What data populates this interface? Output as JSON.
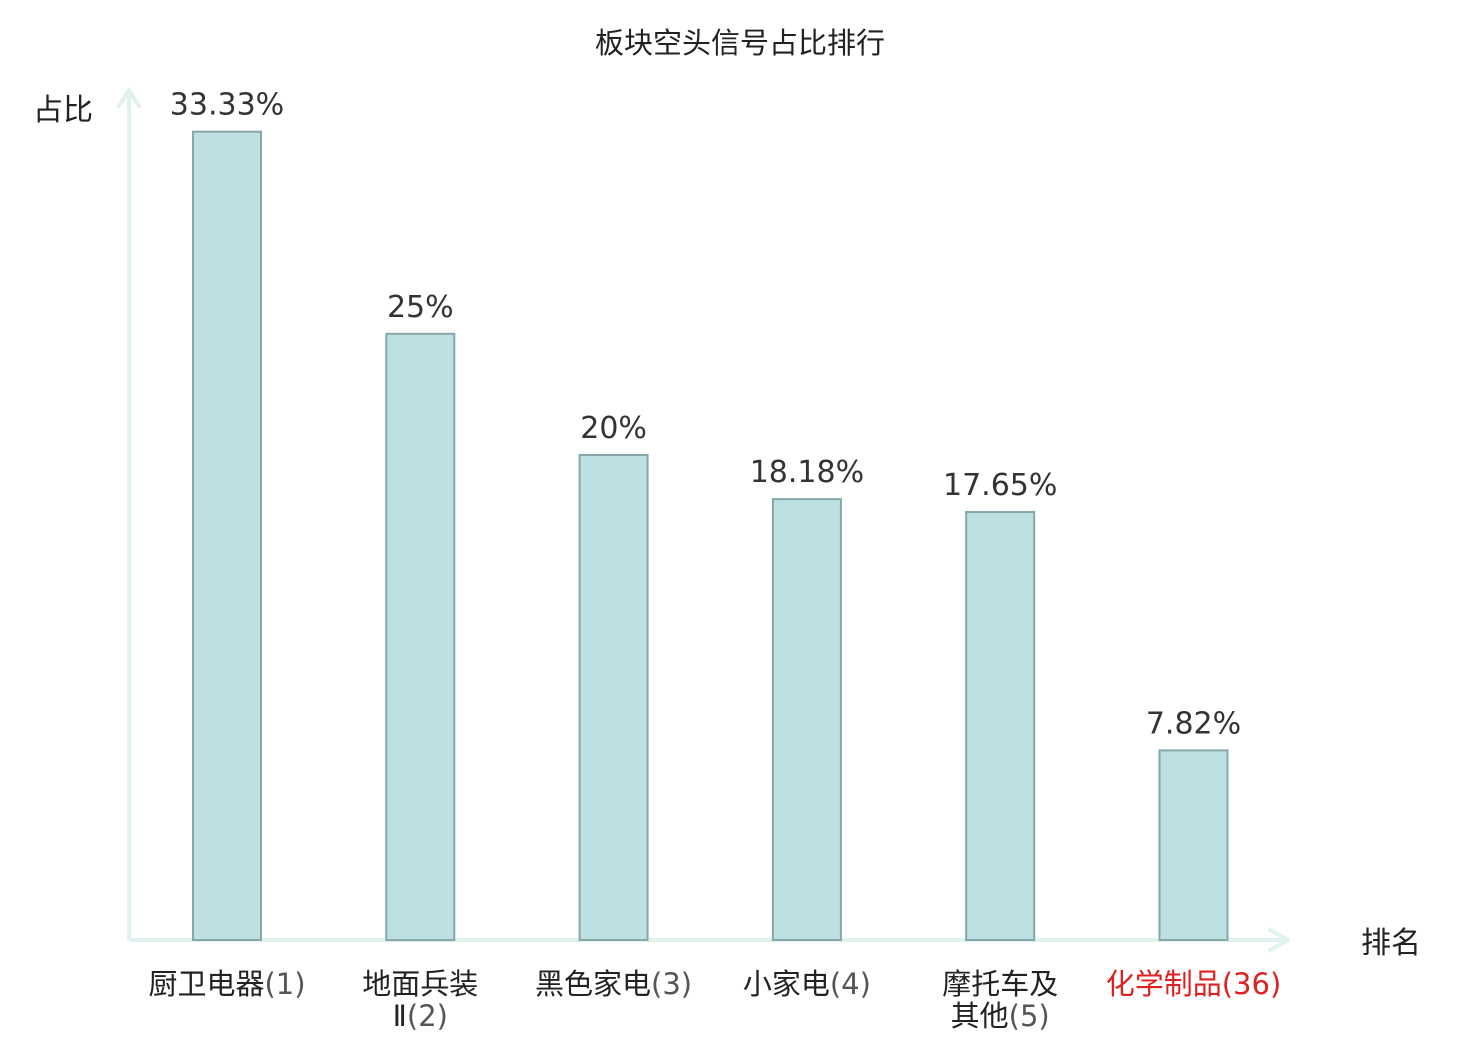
{
  "chart_data": {
    "type": "bar",
    "title": "板块空头信号占比排行",
    "ylabel": "占比",
    "xlabel": "排名",
    "categories": [
      {
        "name_lines": [
          "厨卫电器"
        ],
        "rank": "(1)",
        "highlight": false
      },
      {
        "name_lines": [
          "地面兵装",
          "Ⅱ"
        ],
        "rank": "(2)",
        "highlight": false
      },
      {
        "name_lines": [
          "黑色家电"
        ],
        "rank": "(3)",
        "highlight": false
      },
      {
        "name_lines": [
          "小家电"
        ],
        "rank": "(4)",
        "highlight": false
      },
      {
        "name_lines": [
          "摩托车及",
          "其他"
        ],
        "rank": "(5)",
        "highlight": false
      },
      {
        "name_lines": [
          "化学制品"
        ],
        "rank": "(36)",
        "highlight": true
      }
    ],
    "values": [
      33.33,
      25,
      20,
      18.18,
      17.65,
      7.82
    ],
    "value_labels": [
      "33.33%",
      "25%",
      "20%",
      "18.18%",
      "17.65%",
      "7.82%"
    ],
    "ylim": [
      0,
      35
    ],
    "grid": false,
    "colors": {
      "bar_fill": "#bde0e2",
      "bar_stroke": "#86a7a9",
      "axis": "#e0f2ef",
      "text": "#222222",
      "rank_text": "#555555",
      "highlight": "#e02020"
    }
  }
}
